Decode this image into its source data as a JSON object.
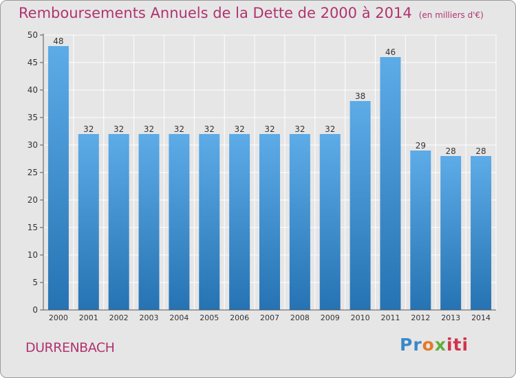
{
  "title": "Remboursements Annuels de la Dette de 2000 à 2014",
  "unit": "(en milliers d'€)",
  "commune": "DURRENBACH",
  "logo": {
    "p1": "Pr",
    "p2": "o",
    "p3": "x",
    "p4": "iti"
  },
  "colors": {
    "accent": "#b0336f",
    "bar_top": "#5dabe7",
    "bar_bottom": "#2673b3",
    "background": "#e6e6e6"
  },
  "chart_data": {
    "type": "bar",
    "title": "Remboursements Annuels de la Dette de 2000 à 2014",
    "categories": [
      "2000",
      "2001",
      "2002",
      "2003",
      "2004",
      "2005",
      "2006",
      "2007",
      "2008",
      "2009",
      "2010",
      "2011",
      "2012",
      "2013",
      "2014"
    ],
    "values": [
      48,
      32,
      32,
      32,
      32,
      32,
      32,
      32,
      32,
      32,
      38,
      46,
      29,
      28,
      28
    ],
    "ylim": [
      0,
      50
    ],
    "yticks": [
      0,
      5,
      10,
      15,
      20,
      25,
      30,
      35,
      40,
      45,
      50
    ],
    "grid": true,
    "data_labels": true
  }
}
